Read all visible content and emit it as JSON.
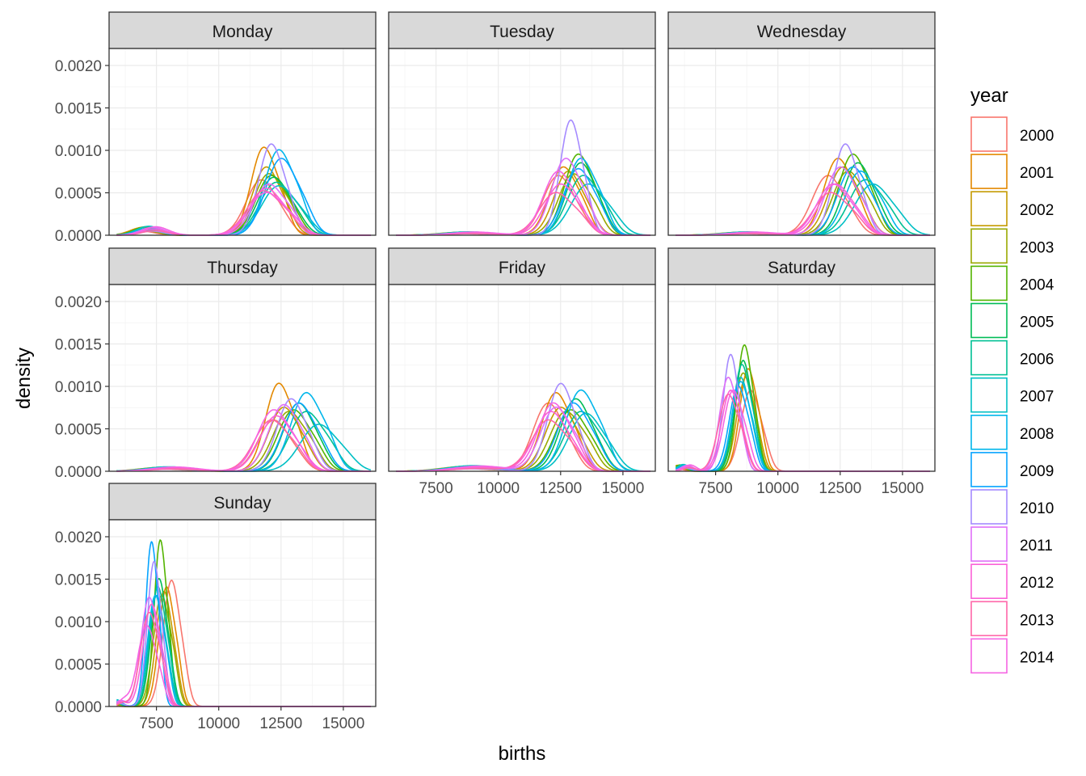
{
  "chart_data": {
    "type": "line",
    "subtype": "density (faceted by weekday, one curve per year)",
    "xlabel": "births",
    "ylabel": "density",
    "xlim": [
      5600,
      16300
    ],
    "ylim": [
      0,
      0.0022
    ],
    "x_ticks": [
      7500,
      10000,
      12500,
      15000
    ],
    "x_tick_labels": [
      "7500",
      "10000",
      "12500",
      "15000"
    ],
    "y_ticks": [
      0,
      0.0005,
      0.001,
      0.0015,
      0.002
    ],
    "y_tick_labels": [
      "0.0000",
      "0.0005",
      "0.0010",
      "0.0015",
      "0.0020"
    ],
    "grid": true,
    "legend": {
      "title": "year",
      "position": "right",
      "entries": [
        "2000",
        "2001",
        "2002",
        "2003",
        "2004",
        "2005",
        "2006",
        "2007",
        "2008",
        "2009",
        "2010",
        "2011",
        "2012",
        "2013",
        "2014"
      ],
      "colors": [
        "#F8766D",
        "#E38900",
        "#C49A00",
        "#99A800",
        "#53B400",
        "#00BC56",
        "#00C094",
        "#00BFC4",
        "#00B6EB",
        "#06A4FF",
        "#A58AFF",
        "#DF70F8",
        "#FB61D7",
        "#FF66A8",
        "#F564E3"
      ]
    },
    "facets": [
      {
        "name": "Monday",
        "modes": [
          11700,
          11800,
          11900,
          12000,
          12100,
          12200,
          12300,
          12400,
          12400,
          12500,
          12100,
          12000,
          11900,
          11800,
          11900
        ],
        "peaks": [
          0.00065,
          0.00103,
          0.0008,
          0.00072,
          0.0007,
          0.00068,
          0.00062,
          0.00058,
          0.001,
          0.0009,
          0.00107,
          0.0006,
          0.00055,
          0.00052,
          0.0005
        ],
        "sd": [
          600,
          500,
          550,
          580,
          600,
          620,
          650,
          680,
          560,
          620,
          500,
          620,
          640,
          660,
          700
        ],
        "low": {
          "center": 7200,
          "height": 8e-05,
          "sd": 500
        }
      },
      {
        "name": "Tuesday",
        "modes": [
          12400,
          12600,
          12800,
          13000,
          13200,
          13300,
          13400,
          13600,
          13300,
          13200,
          12900,
          12700,
          12500,
          12300,
          12400
        ],
        "peaks": [
          0.0007,
          0.0008,
          0.00075,
          0.00072,
          0.00095,
          0.00085,
          0.0007,
          0.0006,
          0.0009,
          0.00078,
          0.00135,
          0.0009,
          0.0006,
          0.0005,
          0.00075
        ],
        "sd": [
          600,
          550,
          560,
          580,
          550,
          560,
          620,
          680,
          560,
          580,
          420,
          560,
          620,
          650,
          600
        ],
        "low": {
          "center": 8800,
          "height": 3e-05,
          "sd": 900
        }
      },
      {
        "name": "Wednesday",
        "modes": [
          12000,
          12400,
          12600,
          12800,
          13000,
          13200,
          13500,
          13800,
          13300,
          13000,
          12700,
          12500,
          12300,
          12100,
          12200
        ],
        "peaks": [
          0.0007,
          0.0009,
          0.0008,
          0.00075,
          0.00095,
          0.00085,
          0.00065,
          0.0006,
          0.00075,
          0.0008,
          0.00107,
          0.0008,
          0.0006,
          0.0005,
          0.0006
        ],
        "sd": [
          620,
          560,
          580,
          600,
          560,
          580,
          650,
          700,
          600,
          600,
          480,
          600,
          640,
          660,
          640
        ],
        "low": {
          "center": 8800,
          "height": 3e-05,
          "sd": 900
        }
      },
      {
        "name": "Thursday",
        "modes": [
          12200,
          12400,
          12600,
          12800,
          13000,
          13200,
          13500,
          14000,
          13500,
          13200,
          12900,
          12600,
          12300,
          12100,
          12200
        ],
        "peaks": [
          0.0006,
          0.00103,
          0.00075,
          0.0007,
          0.00072,
          0.0008,
          0.0007,
          0.00055,
          0.00092,
          0.0008,
          0.00085,
          0.00078,
          0.00065,
          0.0006,
          0.00072
        ],
        "sd": [
          620,
          520,
          600,
          620,
          620,
          600,
          660,
          720,
          600,
          620,
          560,
          600,
          640,
          660,
          640
        ],
        "low": {
          "center": 8000,
          "height": 4e-05,
          "sd": 900
        }
      },
      {
        "name": "Friday",
        "modes": [
          12000,
          12300,
          12500,
          12700,
          12900,
          13100,
          13300,
          13500,
          13300,
          13000,
          12500,
          12300,
          12100,
          12000,
          12200
        ],
        "peaks": [
          0.0008,
          0.00092,
          0.00075,
          0.0007,
          0.00072,
          0.00085,
          0.0007,
          0.00068,
          0.00095,
          0.0008,
          0.00103,
          0.00075,
          0.0007,
          0.0006,
          0.0008
        ],
        "sd": [
          600,
          560,
          600,
          620,
          620,
          600,
          640,
          660,
          600,
          620,
          520,
          600,
          640,
          660,
          600
        ],
        "low": {
          "center": 9000,
          "height": 5e-05,
          "sd": 1000
        }
      },
      {
        "name": "Saturday",
        "modes": [
          8900,
          8800,
          8700,
          8600,
          8650,
          8600,
          8550,
          8500,
          8500,
          8400,
          8100,
          8000,
          8100,
          8000,
          8200
        ],
        "peaks": [
          0.00095,
          0.0012,
          0.0011,
          0.00115,
          0.00148,
          0.0013,
          0.00125,
          0.0011,
          0.00105,
          0.001,
          0.00137,
          0.0011,
          0.00095,
          0.0009,
          0.00095
        ],
        "sd": [
          380,
          330,
          340,
          340,
          300,
          320,
          330,
          340,
          340,
          350,
          300,
          340,
          360,
          380,
          370
        ],
        "low": {
          "center": 6200,
          "height": 6e-05,
          "sd": 250
        }
      },
      {
        "name": "Sunday",
        "modes": [
          8100,
          7900,
          7800,
          7700,
          7650,
          7600,
          7550,
          7500,
          7450,
          7300,
          7400,
          7200,
          7300,
          7200,
          7100
        ],
        "peaks": [
          0.00148,
          0.0014,
          0.00135,
          0.0013,
          0.00195,
          0.0015,
          0.0014,
          0.0013,
          0.0013,
          0.00193,
          0.0017,
          0.00128,
          0.0012,
          0.0011,
          0.00095
        ],
        "sd": [
          330,
          300,
          310,
          320,
          240,
          300,
          300,
          310,
          300,
          230,
          260,
          320,
          330,
          340,
          350
        ],
        "low": {
          "center": 5900,
          "height": 6e-05,
          "sd": 200
        }
      }
    ]
  }
}
